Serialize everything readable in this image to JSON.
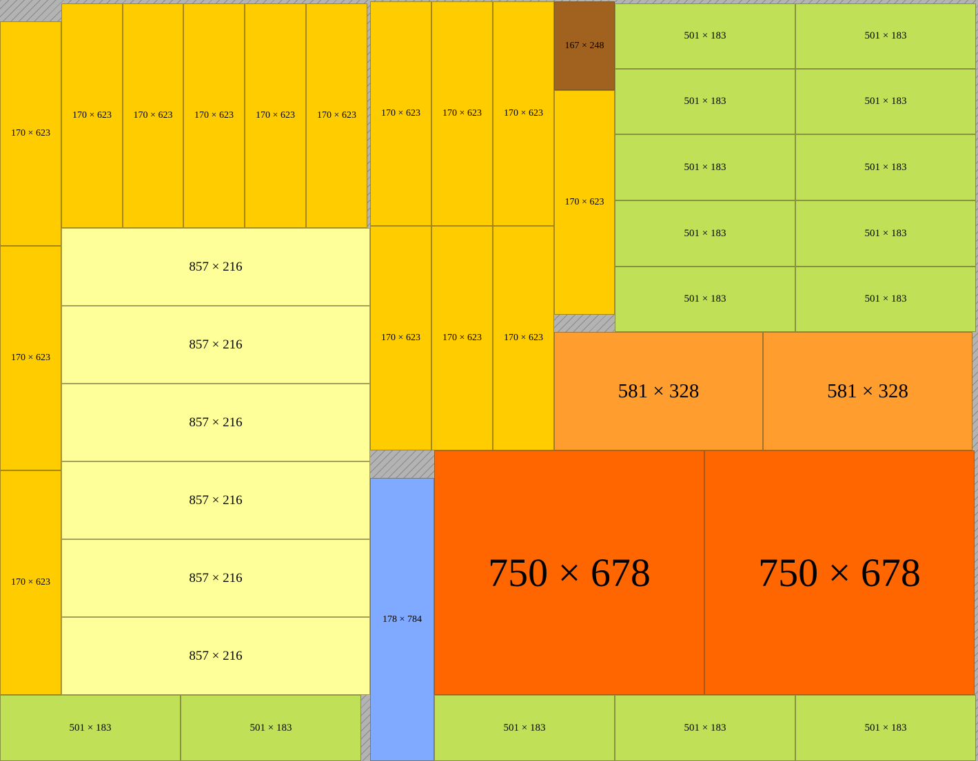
{
  "colors": {
    "c170x623": "#ffcc00",
    "c857x216": "#ffff99",
    "c501x183": "#c0e157",
    "c167x248": "#a0621e",
    "c581x328": "#ff9e2e",
    "c750x678": "#ff6600",
    "c178x784": "#7faaff"
  },
  "items": [
    {
      "label": "170 × 623",
      "color": "c170x623"
    },
    {
      "label": "170 × 623",
      "color": "c170x623"
    },
    {
      "label": "170 × 623",
      "color": "c170x623"
    },
    {
      "label": "170 × 623",
      "color": "c170x623"
    },
    {
      "label": "170 × 623",
      "color": "c170x623"
    },
    {
      "label": "170 × 623",
      "color": "c170x623"
    },
    {
      "label": "170 × 623",
      "color": "c170x623"
    },
    {
      "label": "170 × 623",
      "color": "c170x623"
    },
    {
      "label": "857 × 216",
      "color": "c857x216"
    },
    {
      "label": "857 × 216",
      "color": "c857x216"
    },
    {
      "label": "857 × 216",
      "color": "c857x216"
    },
    {
      "label": "857 × 216",
      "color": "c857x216"
    },
    {
      "label": "857 × 216",
      "color": "c857x216"
    },
    {
      "label": "857 × 216",
      "color": "c857x216"
    },
    {
      "label": "501 × 183",
      "color": "c501x183"
    },
    {
      "label": "501 × 183",
      "color": "c501x183"
    },
    {
      "label": "170 × 623",
      "color": "c170x623"
    },
    {
      "label": "170 × 623",
      "color": "c170x623"
    },
    {
      "label": "170 × 623",
      "color": "c170x623"
    },
    {
      "label": "170 × 623",
      "color": "c170x623"
    },
    {
      "label": "170 × 623",
      "color": "c170x623"
    },
    {
      "label": "170 × 623",
      "color": "c170x623"
    },
    {
      "label": "167 × 248",
      "color": "c167x248"
    },
    {
      "label": "170 × 623",
      "color": "c170x623"
    },
    {
      "label": "501 × 183",
      "color": "c501x183"
    },
    {
      "label": "501 × 183",
      "color": "c501x183"
    },
    {
      "label": "501 × 183",
      "color": "c501x183"
    },
    {
      "label": "501 × 183",
      "color": "c501x183"
    },
    {
      "label": "501 × 183",
      "color": "c501x183"
    },
    {
      "label": "501 × 183",
      "color": "c501x183"
    },
    {
      "label": "501 × 183",
      "color": "c501x183"
    },
    {
      "label": "501 × 183",
      "color": "c501x183"
    },
    {
      "label": "501 × 183",
      "color": "c501x183"
    },
    {
      "label": "501 × 183",
      "color": "c501x183"
    },
    {
      "label": "581 × 328",
      "color": "c581x328"
    },
    {
      "label": "581 × 328",
      "color": "c581x328"
    },
    {
      "label": "178 × 784",
      "color": "c178x784"
    },
    {
      "label": "750 × 678",
      "color": "c750x678"
    },
    {
      "label": "750 × 678",
      "color": "c750x678"
    },
    {
      "label": "501 × 183",
      "color": "c501x183"
    },
    {
      "label": "501 × 183",
      "color": "c501x183"
    },
    {
      "label": "501 × 183",
      "color": "c501x183"
    }
  ]
}
